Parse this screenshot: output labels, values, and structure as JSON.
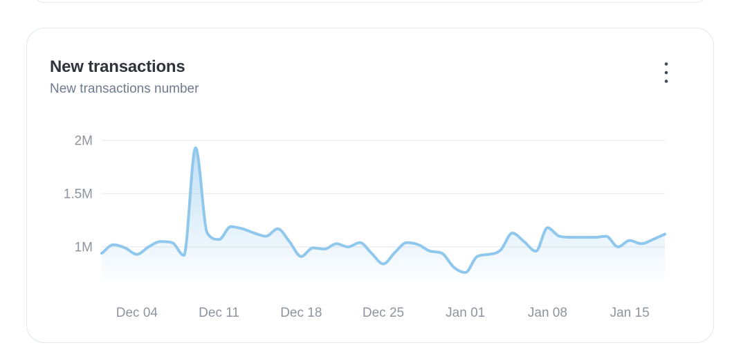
{
  "card": {
    "title": "New transactions",
    "subtitle": "New transactions number",
    "menu_icon": "kebab-menu-icon"
  },
  "colors": {
    "line": "#8fc7ed",
    "area_tint": "rgba(147,201,237,0.65)",
    "grid": "#ebedf0",
    "axis_text": "#8e949d",
    "title_text": "#2f343c",
    "subtitle_text": "#6d7a90",
    "card_border": "#e2e7ef",
    "menu_dots": "#434a54"
  },
  "chart_data": {
    "type": "area",
    "title": "New transactions",
    "series_name": "New transactions number",
    "xlabel": "",
    "ylabel": "",
    "unit": "M",
    "grid": "horizontal",
    "legend": false,
    "ylim_visible": [
      0.64,
      2.26
    ],
    "y_ticks": [
      {
        "label": "2M",
        "value": 2.0
      },
      {
        "label": "1.5M",
        "value": 1.5
      },
      {
        "label": "1M",
        "value": 1.0
      }
    ],
    "x_tick_labels": [
      "Dec 04",
      "Dec 11",
      "Dec 18",
      "Dec 25",
      "Jan 01",
      "Jan 08",
      "Jan 15"
    ],
    "x": [
      "Dec 01",
      "Dec 02",
      "Dec 03",
      "Dec 04",
      "Dec 05",
      "Dec 06",
      "Dec 07",
      "Dec 08",
      "Dec 09",
      "Dec 10",
      "Dec 11",
      "Dec 12",
      "Dec 13",
      "Dec 14",
      "Dec 15",
      "Dec 16",
      "Dec 17",
      "Dec 18",
      "Dec 19",
      "Dec 20",
      "Dec 21",
      "Dec 22",
      "Dec 23",
      "Dec 24",
      "Dec 25",
      "Dec 26",
      "Dec 27",
      "Dec 28",
      "Dec 29",
      "Dec 30",
      "Dec 31",
      "Jan 01",
      "Jan 02",
      "Jan 03",
      "Jan 04",
      "Jan 05",
      "Jan 06",
      "Jan 07",
      "Jan 08",
      "Jan 09",
      "Jan 10",
      "Jan 11",
      "Jan 12",
      "Jan 13",
      "Jan 14",
      "Jan 15",
      "Jan 16",
      "Jan 17",
      "Jan 18"
    ],
    "values_millions": [
      0.94,
      1.02,
      0.99,
      0.93,
      1.0,
      1.05,
      1.04,
      0.92,
      1.93,
      1.13,
      1.07,
      1.19,
      1.17,
      1.13,
      1.1,
      1.17,
      1.05,
      0.91,
      0.99,
      0.98,
      1.03,
      1.0,
      1.04,
      0.94,
      0.84,
      0.95,
      1.04,
      1.02,
      0.96,
      0.94,
      0.81,
      0.76,
      0.91,
      0.93,
      0.97,
      1.13,
      1.05,
      0.96,
      1.18,
      1.1,
      1.09,
      1.09,
      1.09,
      1.1,
      1.0,
      1.06,
      1.03,
      1.07,
      1.12
    ]
  }
}
